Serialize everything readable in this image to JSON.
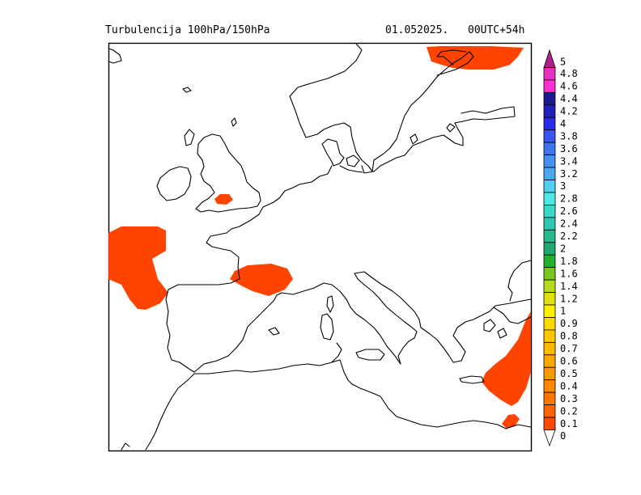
{
  "header": {
    "title": "Turbulencija 100hPa/150hPa",
    "date": "01.052025.",
    "run": "00UTC+54h"
  },
  "legend": {
    "levels": [
      {
        "label": "5",
        "color": "#b0208a"
      },
      {
        "label": "4.8",
        "color": "#e62ebf"
      },
      {
        "label": "4.6",
        "color": "#ff30d0"
      },
      {
        "label": "4.4",
        "color": "#1a1a8c"
      },
      {
        "label": "4.2",
        "color": "#2020b8"
      },
      {
        "label": "4",
        "color": "#2a2ae6"
      },
      {
        "label": "3.8",
        "color": "#3a55f0"
      },
      {
        "label": "3.6",
        "color": "#3f74f0"
      },
      {
        "label": "3.4",
        "color": "#4590f0"
      },
      {
        "label": "3.2",
        "color": "#4ca8ee"
      },
      {
        "label": "3",
        "color": "#4fd0f0"
      },
      {
        "label": "2.8",
        "color": "#4fe8e6"
      },
      {
        "label": "2.6",
        "color": "#3ad8c8"
      },
      {
        "label": "2.4",
        "color": "#2ec8b0"
      },
      {
        "label": "2.2",
        "color": "#28b890"
      },
      {
        "label": "2",
        "color": "#20a870"
      },
      {
        "label": "1.8",
        "color": "#22b030"
      },
      {
        "label": "1.6",
        "color": "#7ac81e"
      },
      {
        "label": "1.4",
        "color": "#b4dc18"
      },
      {
        "label": "1.2",
        "color": "#e0e010"
      },
      {
        "label": "1",
        "color": "#fff000"
      },
      {
        "label": "0.9",
        "color": "#ffd800"
      },
      {
        "label": "0.8",
        "color": "#ffc800"
      },
      {
        "label": "0.7",
        "color": "#ffb800"
      },
      {
        "label": "0.6",
        "color": "#ffa800"
      },
      {
        "label": "0.5",
        "color": "#ff9800"
      },
      {
        "label": "0.4",
        "color": "#ff8800"
      },
      {
        "label": "0.3",
        "color": "#ff7600"
      },
      {
        "label": "0.2",
        "color": "#ff6400"
      },
      {
        "label": "0.1",
        "color": "#ff4a00"
      },
      {
        "label": "0",
        "color": "#ffffff"
      }
    ]
  },
  "turbulence_color": "#ff4400"
}
